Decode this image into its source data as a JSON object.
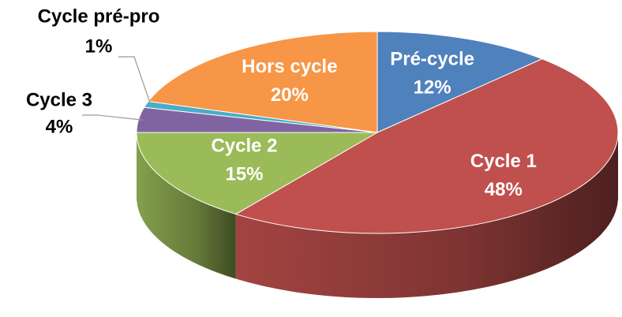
{
  "chart_data": {
    "type": "pie",
    "categories": [
      "Pré-cycle",
      "Cycle 1",
      "Cycle 2",
      "Cycle 3",
      "Cycle pré-pro",
      "Hors cycle"
    ],
    "values": [
      12,
      48,
      15,
      4,
      1,
      20
    ],
    "value_labels": [
      "12%",
      "48%",
      "15%",
      "4%",
      "1%",
      "20%"
    ],
    "colors": [
      "#4f81bd",
      "#c0504d",
      "#9bbb59",
      "#8064a2",
      "#4bacc6",
      "#f79646"
    ]
  }
}
